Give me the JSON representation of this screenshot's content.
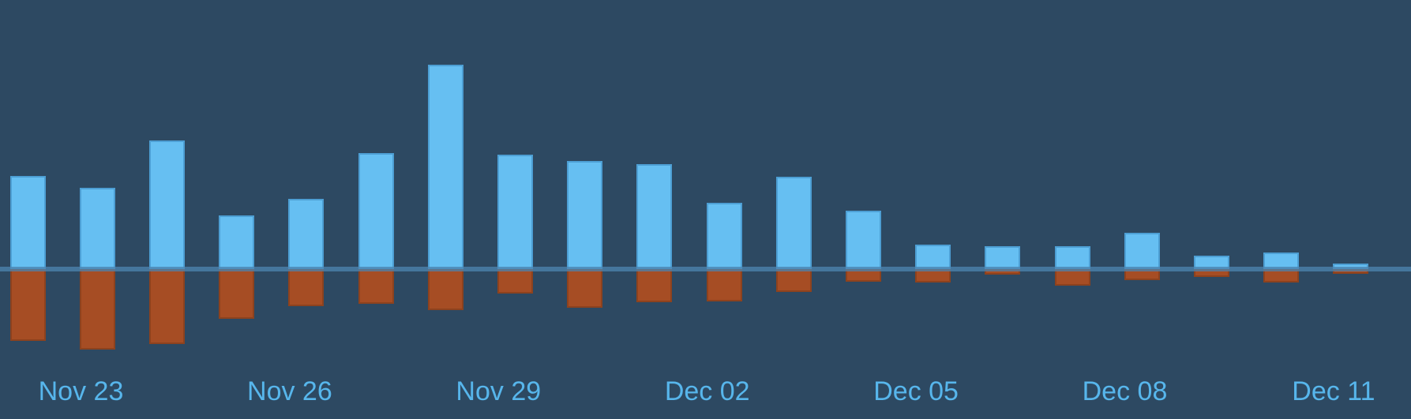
{
  "page": {
    "kind": "time-series volume bar chart",
    "title": ""
  },
  "colors": {
    "background": "#2d4962",
    "bar_up_fill": "#66bff2",
    "bar_up_border": "#4d9fd4",
    "bar_down_fill": "#a64d24",
    "bar_down_border": "#8d421e",
    "baseline_line": "rgba(77,134,177,0.75)",
    "axis_label_text": "#57b6ec"
  },
  "x_axis": {
    "tick_labels": [
      "Nov 23",
      "Nov 26",
      "Nov 29",
      "Dec 02",
      "Dec 05",
      "Dec 08",
      "Dec 11"
    ]
  },
  "chart_data": {
    "type": "bar",
    "title": "",
    "xlabel": "",
    "ylabel": "",
    "grid": false,
    "legend": false,
    "y_axis_visible": false,
    "baseline": 0,
    "note": "Diverging daily bar chart: one series plotted upward and one downward from a shared horizontal baseline. No numeric y-axis is shown; values are estimated in screen pixels of bar length.",
    "x": [
      "Nov 22",
      "Nov 23",
      "Nov 24",
      "Nov 25",
      "Nov 26",
      "Nov 27",
      "Nov 28",
      "Nov 29",
      "Nov 30",
      "Dec 01",
      "Dec 02",
      "Dec 03",
      "Dec 04",
      "Dec 05",
      "Dec 06",
      "Dec 07",
      "Dec 08",
      "Dec 09",
      "Dec 10",
      "Dec 11"
    ],
    "x_tick_labels": [
      "Nov 23",
      "Nov 26",
      "Nov 29",
      "Dec 02",
      "Dec 05",
      "Dec 08",
      "Dec 11"
    ],
    "series": [
      {
        "name": "above-baseline",
        "direction": "up",
        "values": [
          118,
          103,
          163,
          68,
          89,
          147,
          259,
          145,
          137,
          133,
          84,
          117,
          74,
          31,
          29,
          29,
          46,
          17,
          21,
          7
        ]
      },
      {
        "name": "below-baseline",
        "direction": "down",
        "values": [
          91,
          102,
          95,
          63,
          47,
          44,
          52,
          31,
          49,
          42,
          41,
          29,
          16,
          17,
          7,
          21,
          14,
          10,
          17,
          6
        ]
      }
    ]
  }
}
